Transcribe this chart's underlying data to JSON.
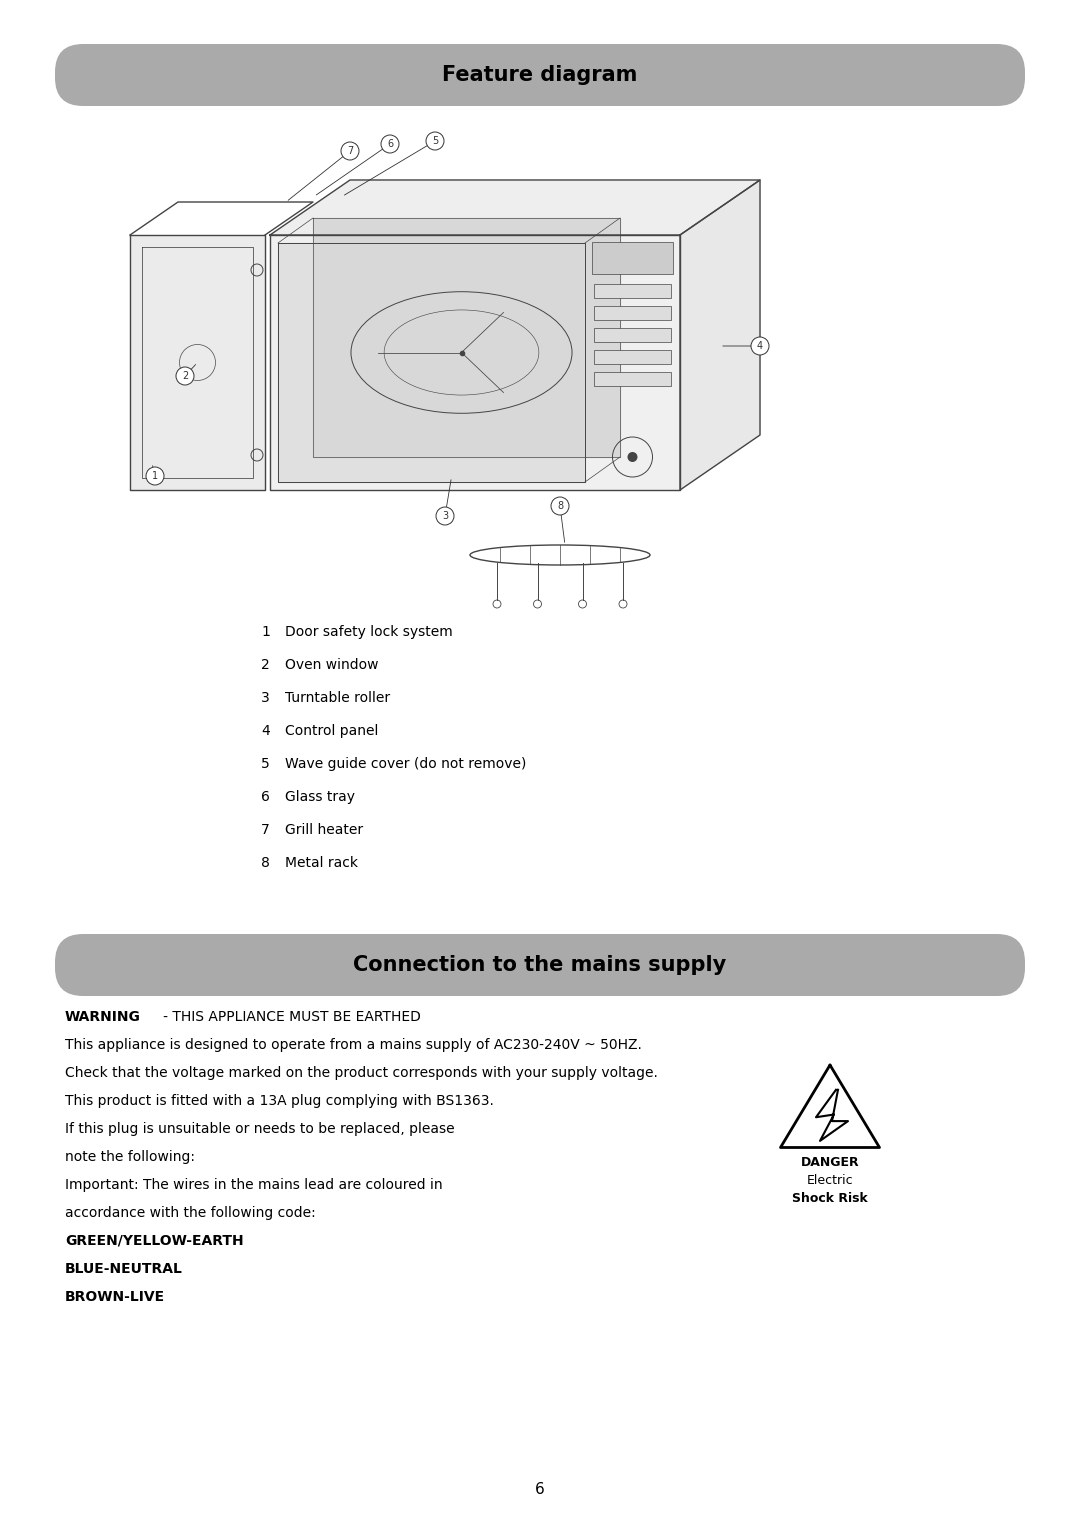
{
  "page_bg": "#ffffff",
  "header1_text": "Feature diagram",
  "header1_bg": "#aaaaaa",
  "header2_text": "Connection to the mains supply",
  "header2_bg": "#aaaaaa",
  "features": [
    [
      "1",
      "Door safety lock system"
    ],
    [
      "2",
      "Oven window"
    ],
    [
      "3",
      "Turntable roller"
    ],
    [
      "4",
      "Control panel"
    ],
    [
      "5",
      "Wave guide cover (do not remove)"
    ],
    [
      "6",
      "Glass tray"
    ],
    [
      "7",
      "Grill heater"
    ],
    [
      "8",
      "Metal rack"
    ]
  ],
  "warning_label": "WARNING",
  "warning_suffix": "   - THIS APPLIANCE MUST BE EARTHED",
  "body_lines": [
    [
      "normal",
      "This appliance is designed to operate from a mains supply of AC230-240V ~ 50HZ."
    ],
    [
      "normal",
      "Check that the voltage marked on the product corresponds with your supply voltage."
    ],
    [
      "normal",
      "This product is fitted with a 13A plug complying with BS1363."
    ],
    [
      "normal",
      "If this plug is unsuitable or needs to be replaced, please"
    ],
    [
      "normal",
      "note the following:"
    ],
    [
      "normal",
      "Important: The wires in the mains lead are coloured in"
    ],
    [
      "normal",
      "accordance with the following code:"
    ],
    [
      "bold",
      "GREEN/YELLOW-EARTH"
    ],
    [
      "bold",
      "BLUE-NEUTRAL"
    ],
    [
      "bold",
      "BROWN-LIVE"
    ]
  ],
  "danger_label": [
    "DANGER",
    "Electric",
    "Shock Risk"
  ],
  "page_number": "6",
  "diagram_color": "#444444",
  "text_color": "#000000",
  "font_size_header": 15,
  "font_size_body": 10,
  "font_size_features": 10,
  "font_size_label": 7
}
